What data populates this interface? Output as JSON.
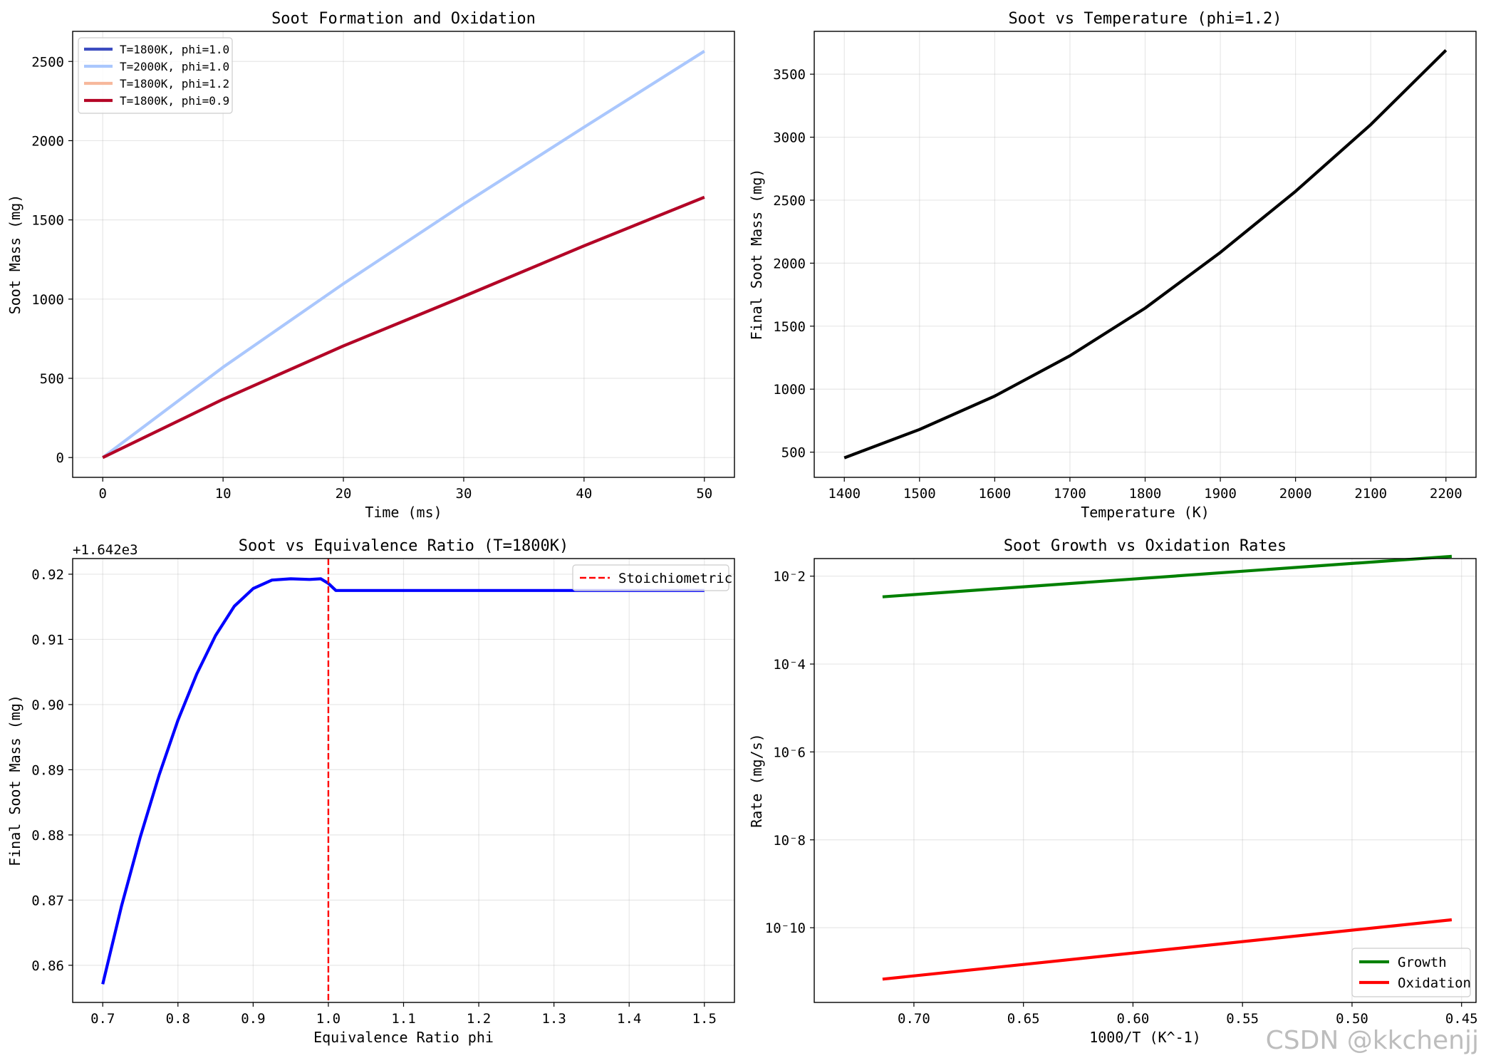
{
  "watermark": "CSDN @kkchenjj",
  "chart_data": [
    {
      "type": "line",
      "title": "Soot Formation and Oxidation",
      "xlabel": "Time (ms)",
      "ylabel": "Soot Mass (mg)",
      "xlim": [
        -2.5,
        52.5
      ],
      "ylim": [
        -125,
        2690
      ],
      "xticks": [
        0,
        10,
        20,
        30,
        40,
        50
      ],
      "yticks": [
        0,
        500,
        1000,
        1500,
        2000,
        2500
      ],
      "grid": true,
      "legend": "top-left",
      "series": [
        {
          "name": "T=1800K, phi=1.0",
          "color": "#3b4cc0",
          "x": [
            0,
            10,
            20,
            30,
            40,
            50
          ],
          "y": [
            0,
            368,
            704,
            1017,
            1336,
            1643
          ]
        },
        {
          "name": "T=2000K, phi=1.0",
          "color": "#aac7fd",
          "x": [
            0,
            10,
            20,
            30,
            40,
            50
          ],
          "y": [
            0,
            570,
            1097,
            1600,
            2085,
            2565
          ]
        },
        {
          "name": "T=1800K, phi=1.2",
          "color": "#f7b89c",
          "x": [
            0,
            10,
            20,
            30,
            40,
            50
          ],
          "y": [
            0,
            368,
            704,
            1017,
            1336,
            1643
          ]
        },
        {
          "name": "T=1800K, phi=0.9",
          "color": "#b40426",
          "x": [
            0,
            10,
            20,
            30,
            40,
            50
          ],
          "y": [
            0,
            368,
            704,
            1017,
            1336,
            1643
          ]
        }
      ]
    },
    {
      "type": "line",
      "title": "Soot vs Temperature (phi=1.2)",
      "xlabel": "Temperature (K)",
      "ylabel": "Final Soot Mass (mg)",
      "xlim": [
        1360,
        2240
      ],
      "ylim": [
        300,
        3840
      ],
      "xticks": [
        1400,
        1500,
        1600,
        1700,
        1800,
        1900,
        2000,
        2100,
        2200
      ],
      "yticks": [
        500,
        1000,
        1500,
        2000,
        2500,
        3000,
        3500
      ],
      "grid": true,
      "series": [
        {
          "name": "Final soot mass",
          "color": "#000000",
          "x": [
            1400,
            1500,
            1600,
            1700,
            1800,
            1900,
            2000,
            2100,
            2200
          ],
          "y": [
            455,
            680,
            945,
            1265,
            1643,
            2085,
            2570,
            3100,
            3690
          ]
        }
      ]
    },
    {
      "type": "line",
      "title": "Soot vs Equivalence Ratio (T=1800K)",
      "xlabel": "Equivalence Ratio phi",
      "ylabel": "Final Soot Mass (mg)",
      "offset_label": "+1.642e3",
      "xlim": [
        0.66,
        1.54
      ],
      "ylim": [
        0.8543,
        0.9224
      ],
      "xticks": [
        0.7,
        0.8,
        0.9,
        1.0,
        1.1,
        1.2,
        1.3,
        1.4,
        1.5
      ],
      "xtick_labels": [
        "0.7",
        "0.8",
        "0.9",
        "1.0",
        "1.1",
        "1.2",
        "1.3",
        "1.4",
        "1.5"
      ],
      "yticks": [
        0.86,
        0.87,
        0.88,
        0.89,
        0.9,
        0.91,
        0.92
      ],
      "ytick_labels": [
        "0.86",
        "0.87",
        "0.88",
        "0.89",
        "0.90",
        "0.91",
        "0.92"
      ],
      "grid": true,
      "legend": "top-right",
      "series": [
        {
          "name": "Final soot mass",
          "color": "#0000ff",
          "x": [
            0.7,
            0.725,
            0.75,
            0.775,
            0.8,
            0.825,
            0.85,
            0.875,
            0.9,
            0.925,
            0.95,
            0.975,
            0.99,
            1.0,
            1.01,
            1.5
          ],
          "y": [
            0.8571,
            0.8691,
            0.8797,
            0.8892,
            0.8976,
            0.9047,
            0.9106,
            0.9151,
            0.9178,
            0.9191,
            0.9193,
            0.9192,
            0.9193,
            0.9186,
            0.9175,
            0.9175
          ]
        }
      ],
      "reference_line": {
        "name": "Stoichiometric",
        "x": 1.0,
        "color": "#ff0000",
        "style": "dashed"
      }
    },
    {
      "type": "line",
      "title": "Soot Growth vs Oxidation Rates",
      "xlabel": "1000/T (K^-1)",
      "ylabel": "Rate (mg/s)",
      "yscale": "log",
      "x_inverted": true,
      "xlim": [
        0.7455,
        0.4434
      ],
      "ylim_log10": [
        -11.7,
        -1.6
      ],
      "xticks": [
        0.7,
        0.65,
        0.6,
        0.55,
        0.5,
        0.45
      ],
      "xtick_labels": [
        "0.70",
        "0.65",
        "0.60",
        "0.55",
        "0.50",
        "0.45"
      ],
      "yticks_log10": [
        -2,
        -4,
        -6,
        -8,
        -10
      ],
      "ytick_labels": [
        "10⁻2",
        "10⁻4",
        "10⁻6",
        "10⁻8",
        "10⁻10"
      ],
      "grid": true,
      "legend": "bottom-right",
      "series": [
        {
          "name": "Growth",
          "color": "#008000",
          "x": [
            0.7143,
            0.4545
          ],
          "y_log10": [
            -2.47,
            -1.55
          ]
        },
        {
          "name": "Oxidation",
          "color": "#ff0000",
          "x": [
            0.7143,
            0.4545
          ],
          "y_log10": [
            -11.17,
            -9.82
          ]
        }
      ]
    }
  ]
}
